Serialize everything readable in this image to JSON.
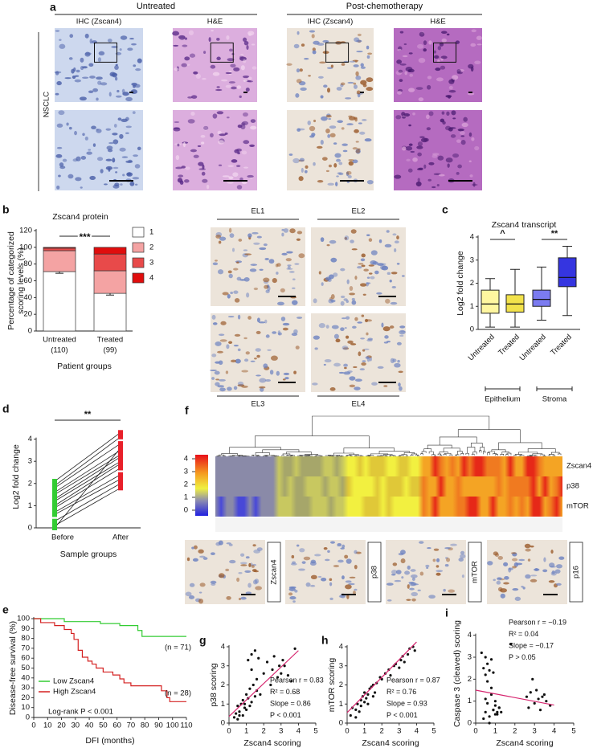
{
  "figure_a": {
    "label": "a",
    "groups": [
      {
        "title": "Untreated",
        "columns": [
          "IHC (Zscan4)",
          "H&E"
        ]
      },
      {
        "title": "Post-chemotherapy",
        "columns": [
          "IHC (Zscan4)",
          "H&E"
        ]
      }
    ],
    "row_label": "NSCLC"
  },
  "figure_b_images": {
    "labels": [
      "EL1",
      "EL2",
      "EL3",
      "EL4"
    ]
  },
  "figure_f": {
    "label": "f",
    "colorbar_ticks": [
      0,
      1,
      2,
      3,
      4
    ],
    "rows": [
      "Zscan4",
      "p38",
      "mTOR"
    ],
    "stain_labels": [
      "Zscan4",
      "p38",
      "mTOR",
      "p16"
    ]
  },
  "chart_data": [
    {
      "type": "stacked_bar",
      "label": "b",
      "title": "Zscan4 protein",
      "categories": [
        "Untreated",
        "Treated"
      ],
      "category_counts": [
        "(110)",
        "(99)"
      ],
      "xlabel": "Patient groups",
      "ylabel": [
        "Percentage of categorized",
        "scoring levels (%)"
      ],
      "ylim": [
        0,
        120
      ],
      "yticks": [
        0,
        20,
        40,
        60,
        80,
        100,
        120
      ],
      "annotations": [
        "***"
      ],
      "series": [
        {
          "name": "1",
          "color": "#ffffff",
          "values": [
            71,
            45
          ],
          "errors": [
            2,
            2
          ]
        },
        {
          "name": "2",
          "color": "#f4a3a3",
          "values": [
            25,
            27
          ]
        },
        {
          "name": "3",
          "color": "#e84a4a",
          "values": [
            3,
            20
          ]
        },
        {
          "name": "4",
          "color": "#e00d0d",
          "values": [
            1,
            8
          ]
        }
      ]
    },
    {
      "type": "box",
      "label": "c",
      "title": "Zscan4 transcript",
      "categories": [
        "Untreated",
        "Treated",
        "Untreated",
        "Treated"
      ],
      "groups": [
        "Epithelium",
        "Stroma"
      ],
      "ylabel": "Log2 fold change",
      "ylim": [
        0,
        4
      ],
      "yticks": [
        0,
        1,
        2,
        3,
        4
      ],
      "annotations": [
        "^",
        "**"
      ],
      "colors": [
        "#fff6a0",
        "#f2e24b",
        "#7b7bf0",
        "#3535e0"
      ],
      "boxes": [
        {
          "min": 0.1,
          "q1": 0.7,
          "median": 1.1,
          "q3": 1.7,
          "max": 2.2
        },
        {
          "min": 0.1,
          "q1": 0.75,
          "median": 1.1,
          "q3": 1.5,
          "max": 2.6
        },
        {
          "min": 0.4,
          "q1": 1.0,
          "median": 1.3,
          "q3": 1.7,
          "max": 2.7
        },
        {
          "min": 0.6,
          "q1": 1.85,
          "median": 2.25,
          "q3": 3.1,
          "max": 3.6
        }
      ]
    },
    {
      "type": "paired",
      "label": "d",
      "categories": [
        "Before",
        "After"
      ],
      "xlabel": "Sample groups",
      "ylabel": "Log2 fold change",
      "ylim": [
        0,
        4.6
      ],
      "yticks": [
        0,
        1,
        2,
        3,
        4
      ],
      "annotations": [
        "**"
      ],
      "colors": [
        "#33cc33",
        "#e8202a"
      ],
      "pairs": [
        [
          2.1,
          4.3
        ],
        [
          1.9,
          4.1
        ],
        [
          1.8,
          3.8
        ],
        [
          1.6,
          3.5
        ],
        [
          1.5,
          3.3
        ],
        [
          1.3,
          3.2
        ],
        [
          1.2,
          3.0
        ],
        [
          1.0,
          2.9
        ],
        [
          0.9,
          2.7
        ],
        [
          0.7,
          2.4
        ],
        [
          0.6,
          2.2
        ],
        [
          0.3,
          2.0
        ],
        [
          0.1,
          1.8
        ],
        [
          0.0,
          3.6
        ]
      ]
    },
    {
      "type": "step",
      "label": "e",
      "xlabel": "DFI (months)",
      "ylabel": "Disease-free survival (%)",
      "xlim": [
        0,
        110
      ],
      "xticks": [
        0,
        10,
        20,
        30,
        40,
        50,
        60,
        70,
        80,
        90,
        100,
        110
      ],
      "ylim": [
        0,
        100
      ],
      "yticks": [
        0,
        10,
        20,
        30,
        40,
        50,
        60,
        70,
        80,
        90,
        100
      ],
      "annotations": [
        "(n = 71)",
        "(n = 28)",
        "Log-rank P < 0.001"
      ],
      "series": [
        {
          "name": "Low Zscan4",
          "color": "#33cc33",
          "x": [
            0,
            22,
            48,
            62,
            75,
            78,
            110
          ],
          "values": [
            100,
            97,
            95,
            93,
            88,
            82,
            82
          ]
        },
        {
          "name": "High Zscan4",
          "color": "#d42020",
          "x": [
            0,
            5,
            15,
            22,
            27,
            29,
            32,
            35,
            39,
            42,
            45,
            50,
            57,
            62,
            65,
            70,
            92,
            96,
            98,
            110
          ],
          "values": [
            100,
            96,
            93,
            89,
            85,
            79,
            68,
            61,
            57,
            54,
            50,
            46,
            43,
            39,
            35,
            32,
            27,
            20,
            16,
            16
          ]
        }
      ]
    },
    {
      "type": "scatter",
      "label": "g",
      "xlabel": "Zscan4 scoring",
      "ylabel": "p38 scoring",
      "xlim": [
        0,
        5
      ],
      "xticks": [
        0,
        1,
        2,
        3,
        4,
        5
      ],
      "ylim": [
        0,
        4
      ],
      "yticks": [
        0,
        1,
        2,
        3,
        4
      ],
      "annotations": [
        "Pearson r = 0.83",
        "R² = 0.68",
        "Slope = 0.86",
        "P < 0.001"
      ],
      "fit_color": "#d6246e",
      "x": [
        0.3,
        0.4,
        0.5,
        0.5,
        0.6,
        0.7,
        0.8,
        0.8,
        0.9,
        1.0,
        1.0,
        1.1,
        1.2,
        1.2,
        1.3,
        1.3,
        1.4,
        1.5,
        1.5,
        1.6,
        1.7,
        1.8,
        2.0,
        2.2,
        2.4,
        2.5,
        2.6,
        2.8,
        2.9,
        3.0,
        3.1,
        3.2,
        3.4,
        3.6,
        3.8,
        1.1,
        1.3,
        0.6,
        0.9,
        1.6
      ],
      "values": [
        0.3,
        0.5,
        0.2,
        0.9,
        0.6,
        1.0,
        0.4,
        1.2,
        0.8,
        1.5,
        0.7,
        1.3,
        1.8,
        0.9,
        1.1,
        3.6,
        2.0,
        1.4,
        3.8,
        1.7,
        3.4,
        1.5,
        2.6,
        3.2,
        2.0,
        2.8,
        3.5,
        2.4,
        3.0,
        2.6,
        3.3,
        3.0,
        2.5,
        2.2,
        3.9,
        3.3,
        2.8,
        0.4,
        1.0,
        2.3
      ],
      "fit": {
        "x": [
          0,
          4
        ],
        "values": [
          0.35,
          3.8
        ]
      }
    },
    {
      "type": "scatter",
      "label": "h",
      "xlabel": "Zscan4 scoring",
      "ylabel": "mTOR scoring",
      "xlim": [
        0,
        5
      ],
      "xticks": [
        0,
        1,
        2,
        3,
        4,
        5
      ],
      "ylim": [
        0,
        4
      ],
      "yticks": [
        0,
        1,
        2,
        3,
        4
      ],
      "annotations": [
        "Pearson r = 0.87",
        "R² = 0.76",
        "Slope = 0.93",
        "P < 0.001"
      ],
      "fit_color": "#d6246e",
      "x": [
        0.2,
        0.3,
        0.5,
        0.6,
        0.7,
        0.8,
        0.8,
        0.9,
        1.0,
        1.0,
        1.1,
        1.2,
        1.3,
        1.4,
        1.5,
        1.6,
        1.7,
        1.9,
        2.0,
        2.2,
        2.4,
        2.5,
        2.7,
        2.8,
        3.0,
        3.1,
        3.2,
        3.3,
        3.5,
        3.6,
        3.8,
        3.9,
        1.2,
        0.5,
        1.5
      ],
      "values": [
        0.4,
        0.8,
        0.3,
        1.0,
        0.6,
        1.2,
        0.9,
        1.4,
        1.1,
        1.6,
        1.3,
        1.5,
        1.8,
        1.9,
        2.0,
        1.6,
        2.1,
        2.4,
        2.3,
        2.6,
        2.8,
        2.5,
        3.0,
        3.1,
        2.9,
        3.3,
        3.5,
        3.2,
        3.6,
        3.9,
        4.0,
        3.8,
        1.0,
        0.7,
        1.4
      ],
      "fit": {
        "x": [
          0,
          4
        ],
        "values": [
          0.55,
          4.25
        ]
      }
    },
    {
      "type": "scatter",
      "label": "i",
      "xlabel": "Zscan4 scoring",
      "ylabel": "Caspase 3 (cleaved) scoring",
      "xlim": [
        0,
        5
      ],
      "xticks": [
        0,
        1,
        2,
        3,
        4,
        5
      ],
      "ylim": [
        0,
        4.5
      ],
      "yticks": [
        0,
        1,
        2,
        3,
        4
      ],
      "annotations": [
        "Pearson r = −0.19",
        "R² = 0.04",
        "Slope = −0.17",
        "P > 0.05"
      ],
      "fit_color": "#d6246e",
      "x": [
        0.3,
        0.4,
        0.5,
        0.5,
        0.6,
        0.6,
        0.7,
        0.8,
        0.8,
        0.9,
        0.9,
        1.0,
        1.0,
        1.1,
        1.2,
        0.4,
        0.5,
        0.6,
        0.7,
        0.8,
        0.9,
        1.0,
        1.1,
        1.2,
        1.3,
        2.6,
        2.7,
        2.8,
        3.0,
        3.1,
        3.2,
        3.3,
        3.5,
        3.6,
        3.8,
        2.9,
        3.4,
        1.8,
        0.7,
        0.5
      ],
      "values": [
        3.2,
        2.5,
        3.0,
        2.2,
        2.7,
        1.9,
        2.4,
        2.9,
        1.6,
        2.3,
        0.6,
        0.4,
        0.8,
        0.5,
        0.7,
        0.2,
        0.5,
        0.9,
        0.3,
        1.3,
        0.6,
        1.0,
        0.4,
        0.7,
        0.5,
        1.2,
        0.7,
        1.4,
        0.9,
        1.5,
        1.1,
        0.6,
        1.3,
        1.0,
        0.8,
        2.0,
        1.2,
        3.6,
        0.0,
        1.1
      ],
      "fit": {
        "x": [
          0,
          4
        ],
        "values": [
          1.5,
          0.82
        ]
      }
    }
  ]
}
